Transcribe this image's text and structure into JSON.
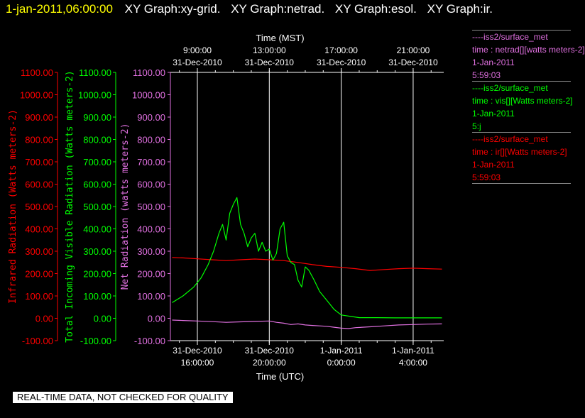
{
  "title_bar": {
    "time": "1-jan-2011,06:00:00",
    "graphs": [
      "XY Graph:xy-grid.",
      "XY Graph:netrad.",
      "XY Graph:esol.",
      "XY Graph:ir."
    ]
  },
  "legends": [
    {
      "station": "----iss2/surface_met",
      "variable": "time : netrad[][watts meters-2]",
      "date": "1-Jan-2011",
      "time": "5:59:03",
      "color": "#e070e0"
    },
    {
      "station": "----iss2/surface_met",
      "variable": "time : vis[][Watts meters-2]",
      "date": "1-Jan-2011",
      "time": "5:j",
      "color": "#00ff00"
    },
    {
      "station": "----iss2/surface_met",
      "variable": "time : ir[][Watts meters-2]",
      "date": "1-Jan-2011",
      "time": "5:59:03",
      "color": "#ff0000"
    }
  ],
  "quality_note": "REAL-TIME DATA, NOT CHECKED FOR QUALITY",
  "chart_data": {
    "type": "line",
    "xlabel_top": "Time (MST)",
    "xlabel_bottom": "Time (UTC)",
    "x_unit": "hours UTC since 31-Dec-2010 00:00",
    "xlim": [
      14.5,
      29.7
    ],
    "bottom_ticks": [
      {
        "x": 16,
        "line1": "31-Dec-2010",
        "line2": "16:00:00"
      },
      {
        "x": 20,
        "line1": "31-Dec-2010",
        "line2": "20:00:00"
      },
      {
        "x": 24,
        "line1": "1-Jan-2011",
        "line2": "0:00:00"
      },
      {
        "x": 28,
        "line1": "1-Jan-2011",
        "line2": "4:00:00"
      }
    ],
    "top_ticks": [
      {
        "x": 16,
        "line1": "9:00:00",
        "line2": "31-Dec-2010"
      },
      {
        "x": 20,
        "line1": "13:00:00",
        "line2": "31-Dec-2010"
      },
      {
        "x": 24,
        "line1": "17:00:00",
        "line2": "31-Dec-2010"
      },
      {
        "x": 28,
        "line1": "21:00:00",
        "line2": "31-Dec-2010"
      }
    ],
    "ylim": [
      -100,
      1100
    ],
    "y_ticks": [
      "-100.00",
      "0.00",
      "100.00",
      "200.00",
      "300.00",
      "400.00",
      "500.00",
      "600.00",
      "700.00",
      "800.00",
      "900.00",
      "1000.00",
      "1100.00"
    ],
    "y_axes": [
      {
        "label": "Infrared Radiation (Watts meters-2)",
        "color": "#ff0000"
      },
      {
        "label": "Total Incoming Visible Radiation (Watts meters-2)",
        "color": "#00ff00"
      },
      {
        "label": "Net Radiation (watts meters-2)",
        "color": "#e070e0"
      }
    ],
    "grid": "vertical",
    "series": [
      {
        "color": "#ff0000",
        "x": [
          14.6,
          15.2,
          16.0,
          16.8,
          17.6,
          18.4,
          19.2,
          20.0,
          20.8,
          21.6,
          22.4,
          23.2,
          24.0,
          24.8,
          25.6,
          26.4,
          27.2,
          28.0,
          28.8,
          29.6
        ],
        "y": [
          272,
          270,
          266,
          262,
          258,
          262,
          265,
          262,
          258,
          250,
          240,
          232,
          228,
          222,
          214,
          218,
          222,
          224,
          222,
          220
        ]
      },
      {
        "color": "#00ff00",
        "x": [
          14.6,
          15.2,
          15.8,
          16.2,
          16.6,
          16.9,
          17.2,
          17.4,
          17.6,
          17.8,
          18.0,
          18.2,
          18.4,
          18.6,
          18.8,
          19.0,
          19.2,
          19.4,
          19.6,
          19.8,
          20.0,
          20.2,
          20.4,
          20.6,
          20.8,
          21.0,
          21.2,
          21.4,
          21.6,
          21.8,
          22.0,
          22.2,
          22.5,
          22.8,
          23.2,
          23.6,
          24.0,
          25.0,
          26.0,
          27.0,
          28.0,
          29.0,
          29.6
        ],
        "y": [
          70,
          100,
          140,
          180,
          240,
          300,
          380,
          420,
          350,
          470,
          510,
          540,
          420,
          380,
          320,
          360,
          380,
          300,
          340,
          300,
          310,
          260,
          290,
          400,
          430,
          280,
          250,
          240,
          170,
          140,
          230,
          215,
          170,
          120,
          80,
          40,
          15,
          3,
          3,
          2,
          2,
          2,
          2
        ]
      },
      {
        "color": "#e070e0",
        "x": [
          14.6,
          15.2,
          16.0,
          16.8,
          17.6,
          18.4,
          19.2,
          20.0,
          20.4,
          20.8,
          21.2,
          21.6,
          22.0,
          22.4,
          22.8,
          23.2,
          23.6,
          24.0,
          24.4,
          24.8,
          25.6,
          26.4,
          27.2,
          28.0,
          28.8,
          29.6
        ],
        "y": [
          -8,
          -10,
          -12,
          -15,
          -18,
          -16,
          -14,
          -12,
          -18,
          -22,
          -28,
          -25,
          -30,
          -32,
          -34,
          -36,
          -40,
          -44,
          -46,
          -42,
          -38,
          -34,
          -30,
          -28,
          -26,
          -25
        ]
      }
    ]
  }
}
